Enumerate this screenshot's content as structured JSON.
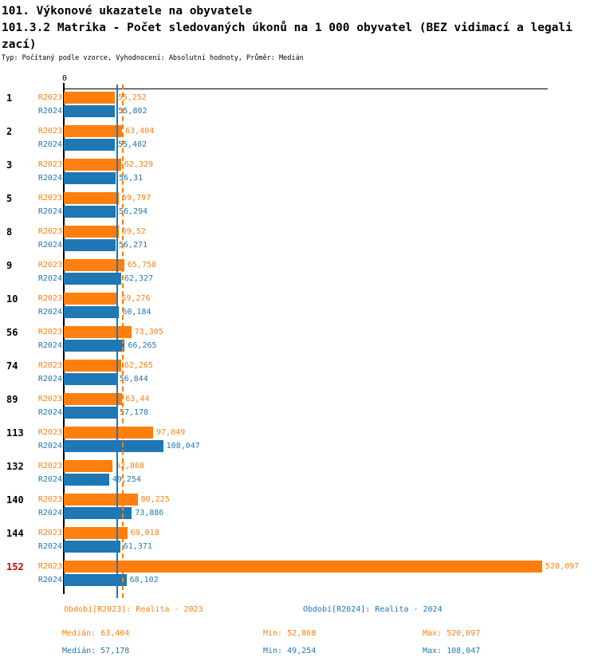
{
  "header": {
    "title": "101. Výkonové ukazatele na obyvatele",
    "subtitle": "101.3.2 Matrika - Počet sledovaných úkonů na 1 000 obyvatel (BEZ vidimací a legalizací)",
    "meta": "Typ: Počítaný podle vzorce, Vyhodnocení: Absolutní hodnoty, Průměr: Medián"
  },
  "chart_data": {
    "type": "bar",
    "orientation": "horizontal",
    "title": "Počet sledovaných úkonů na 1 000 obyvatel (BEZ vidimací a legalizací)",
    "categories": [
      "1",
      "2",
      "3",
      "5",
      "8",
      "9",
      "10",
      "56",
      "74",
      "89",
      "113",
      "132",
      "140",
      "144",
      "152"
    ],
    "series": [
      {
        "name": "R2023",
        "color": "#ff7f0e",
        "values": [
          55.252,
          63.404,
          62.329,
          59.797,
          59.52,
          65.758,
          59.276,
          73.305,
          62.265,
          63.44,
          97.049,
          52.868,
          80.225,
          69.018,
          520.097
        ],
        "value_labels": [
          "55,252",
          "63,404",
          "62,329",
          "59,797",
          "59,52",
          "65,758",
          "59,276",
          "73,305",
          "62,265",
          "63,44",
          "97,049",
          "52,868",
          "80,225",
          "69,018",
          "520,097"
        ]
      },
      {
        "name": "R2024",
        "color": "#1f77b4",
        "values": [
          55.802,
          55.402,
          56.31,
          56.294,
          56.271,
          62.327,
          60.184,
          66.265,
          56.844,
          57.178,
          108.047,
          49.254,
          73.886,
          61.371,
          68.102
        ],
        "value_labels": [
          "55,802",
          "55,402",
          "56,31",
          "56,294",
          "56,271",
          "62,327",
          "60,184",
          "66,265",
          "56,844",
          "57,178",
          "108,047",
          "49,254",
          "73,886",
          "61,371",
          "68,102"
        ]
      }
    ],
    "highlight_category": {
      "label": "152",
      "color": "#d40000"
    },
    "axis": {
      "origin_label": "0",
      "min": 0,
      "max": 520.097,
      "grid": false
    },
    "reference_lines": [
      {
        "name": "median-line-r2024",
        "label": "Medián R2024",
        "value": 57.178,
        "color": "#1f77b4",
        "style": "solid"
      },
      {
        "name": "median-line-r2023",
        "label": "Medián R2023",
        "value": 63.404,
        "color": "#ff7f0e",
        "style": "dashed"
      }
    ],
    "legend_position": "bottom"
  },
  "footer": {
    "legend_2023": "Období[R2023]: Realita - 2023",
    "legend_2024": "Období[R2024]: Realita - 2024",
    "stats_2023": {
      "median": "Medián: 63,404",
      "min": "Min: 52,868",
      "max": "Max: 520,097"
    },
    "stats_2024": {
      "median": "Medián: 57,178",
      "min": "Min: 49,254",
      "max": "Max: 108,047"
    }
  }
}
